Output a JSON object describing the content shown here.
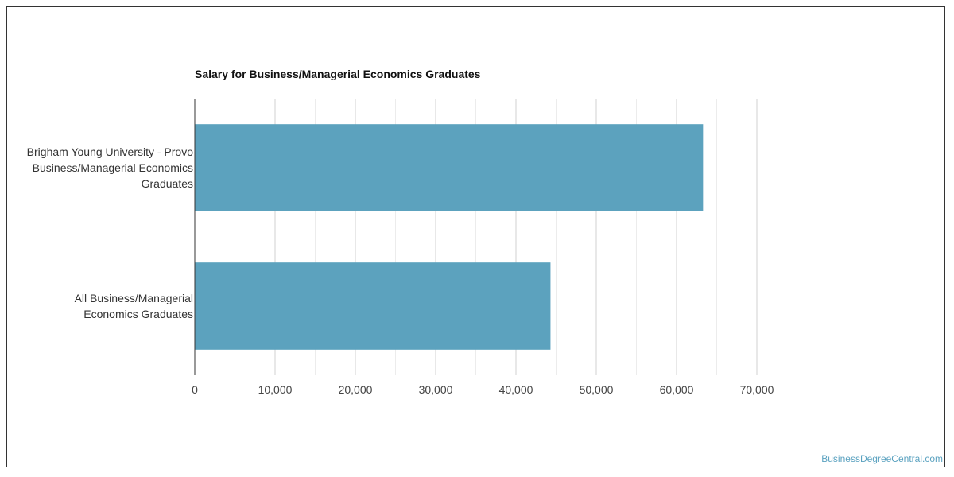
{
  "title": "Salary for Business/Managerial Economics Graduates",
  "watermark": "BusinessDegreeCentral.com",
  "colors": {
    "bar": "#5ca2be",
    "grid_major": "#d2d2d2",
    "grid_minor": "#ececec",
    "axis": "#333333"
  },
  "chart_data": {
    "type": "bar",
    "orientation": "horizontal",
    "title": "Salary for Business/Managerial Economics Graduates",
    "categories": [
      [
        "Brigham Young University - Provo",
        "Business/Managerial Economics",
        "Graduates"
      ],
      [
        "All Business/Managerial",
        "Economics Graduates"
      ]
    ],
    "values": [
      63300,
      44300
    ],
    "xlim": [
      0,
      70000
    ],
    "xticks": [
      0,
      10000,
      20000,
      30000,
      40000,
      50000,
      60000,
      70000
    ],
    "xtick_labels": [
      "0",
      "10,000",
      "20,000",
      "30,000",
      "40,000",
      "50,000",
      "60,000",
      "70,000"
    ],
    "grid": true,
    "legend": "none"
  }
}
